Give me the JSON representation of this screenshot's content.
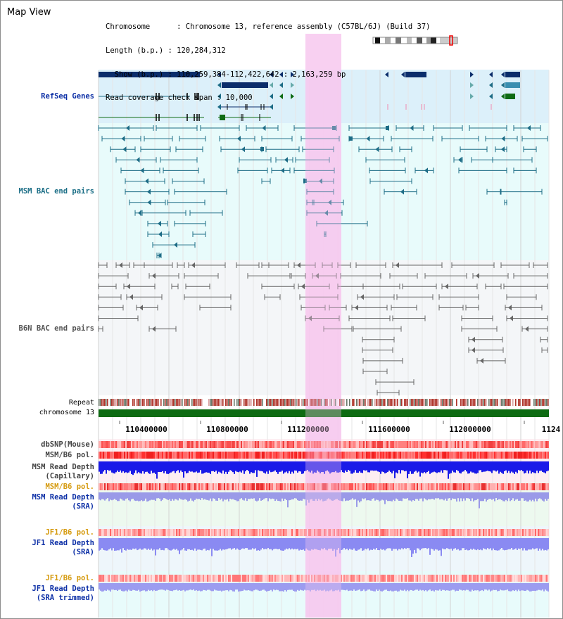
{
  "header": {
    "title": "Map View",
    "info_lines": [
      "Chromosome      : Chromosome 13, reference assembly (C57BL/6J) (Build 37)",
      "Length (b.p.) : 120,284,312",
      "  Show (b.p.) : 110,259,384-112,422,642 : 2,163,259 bp",
      "Read coverage check span : 10,000"
    ]
  },
  "tracks": {
    "refseq": "RefSeq Genes",
    "msm_bac": "MSM BAC end pairs",
    "b6n_bac": "B6N BAC end pairs",
    "repeat": "Repeat",
    "chromosome": "chromosome 13",
    "dbsnp": "dbSNP(Mouse)",
    "msm_b6_pol": "MSM/B6 pol.",
    "msm_depth_cap_1": "MSM Read Depth",
    "msm_depth_cap_2": "(Capillary)",
    "msm_b6_pol_sra": "MSM/B6 pol.",
    "msm_depth_sra_1": "MSM Read Depth",
    "msm_depth_sra_2": "(SRA)",
    "jf1_b6_pol": "JF1/B6 pol.",
    "jf1_depth_1": "JF1 Read Depth",
    "jf1_depth_2": "(SRA)",
    "jf1_b6_pol_2": "JF1/B6 pol.",
    "jf1_trim_1": "JF1 Read Depth",
    "jf1_trim_2": "(SRA trimmed)"
  },
  "axis": {
    "ticks": [
      "110400000",
      "110800000",
      "111200000",
      "111600000",
      "112000000",
      "1124"
    ]
  },
  "colors": {
    "gene_navy": "#0b2d6b",
    "gene_teal": "#1d6c86",
    "gene_green": "#0f6b14",
    "highlight": "#f7c8ef",
    "chromosome_bar": "#0d6b12",
    "depth_blue": "#1a1ae8",
    "depth_light": "#8a8af2"
  }
}
